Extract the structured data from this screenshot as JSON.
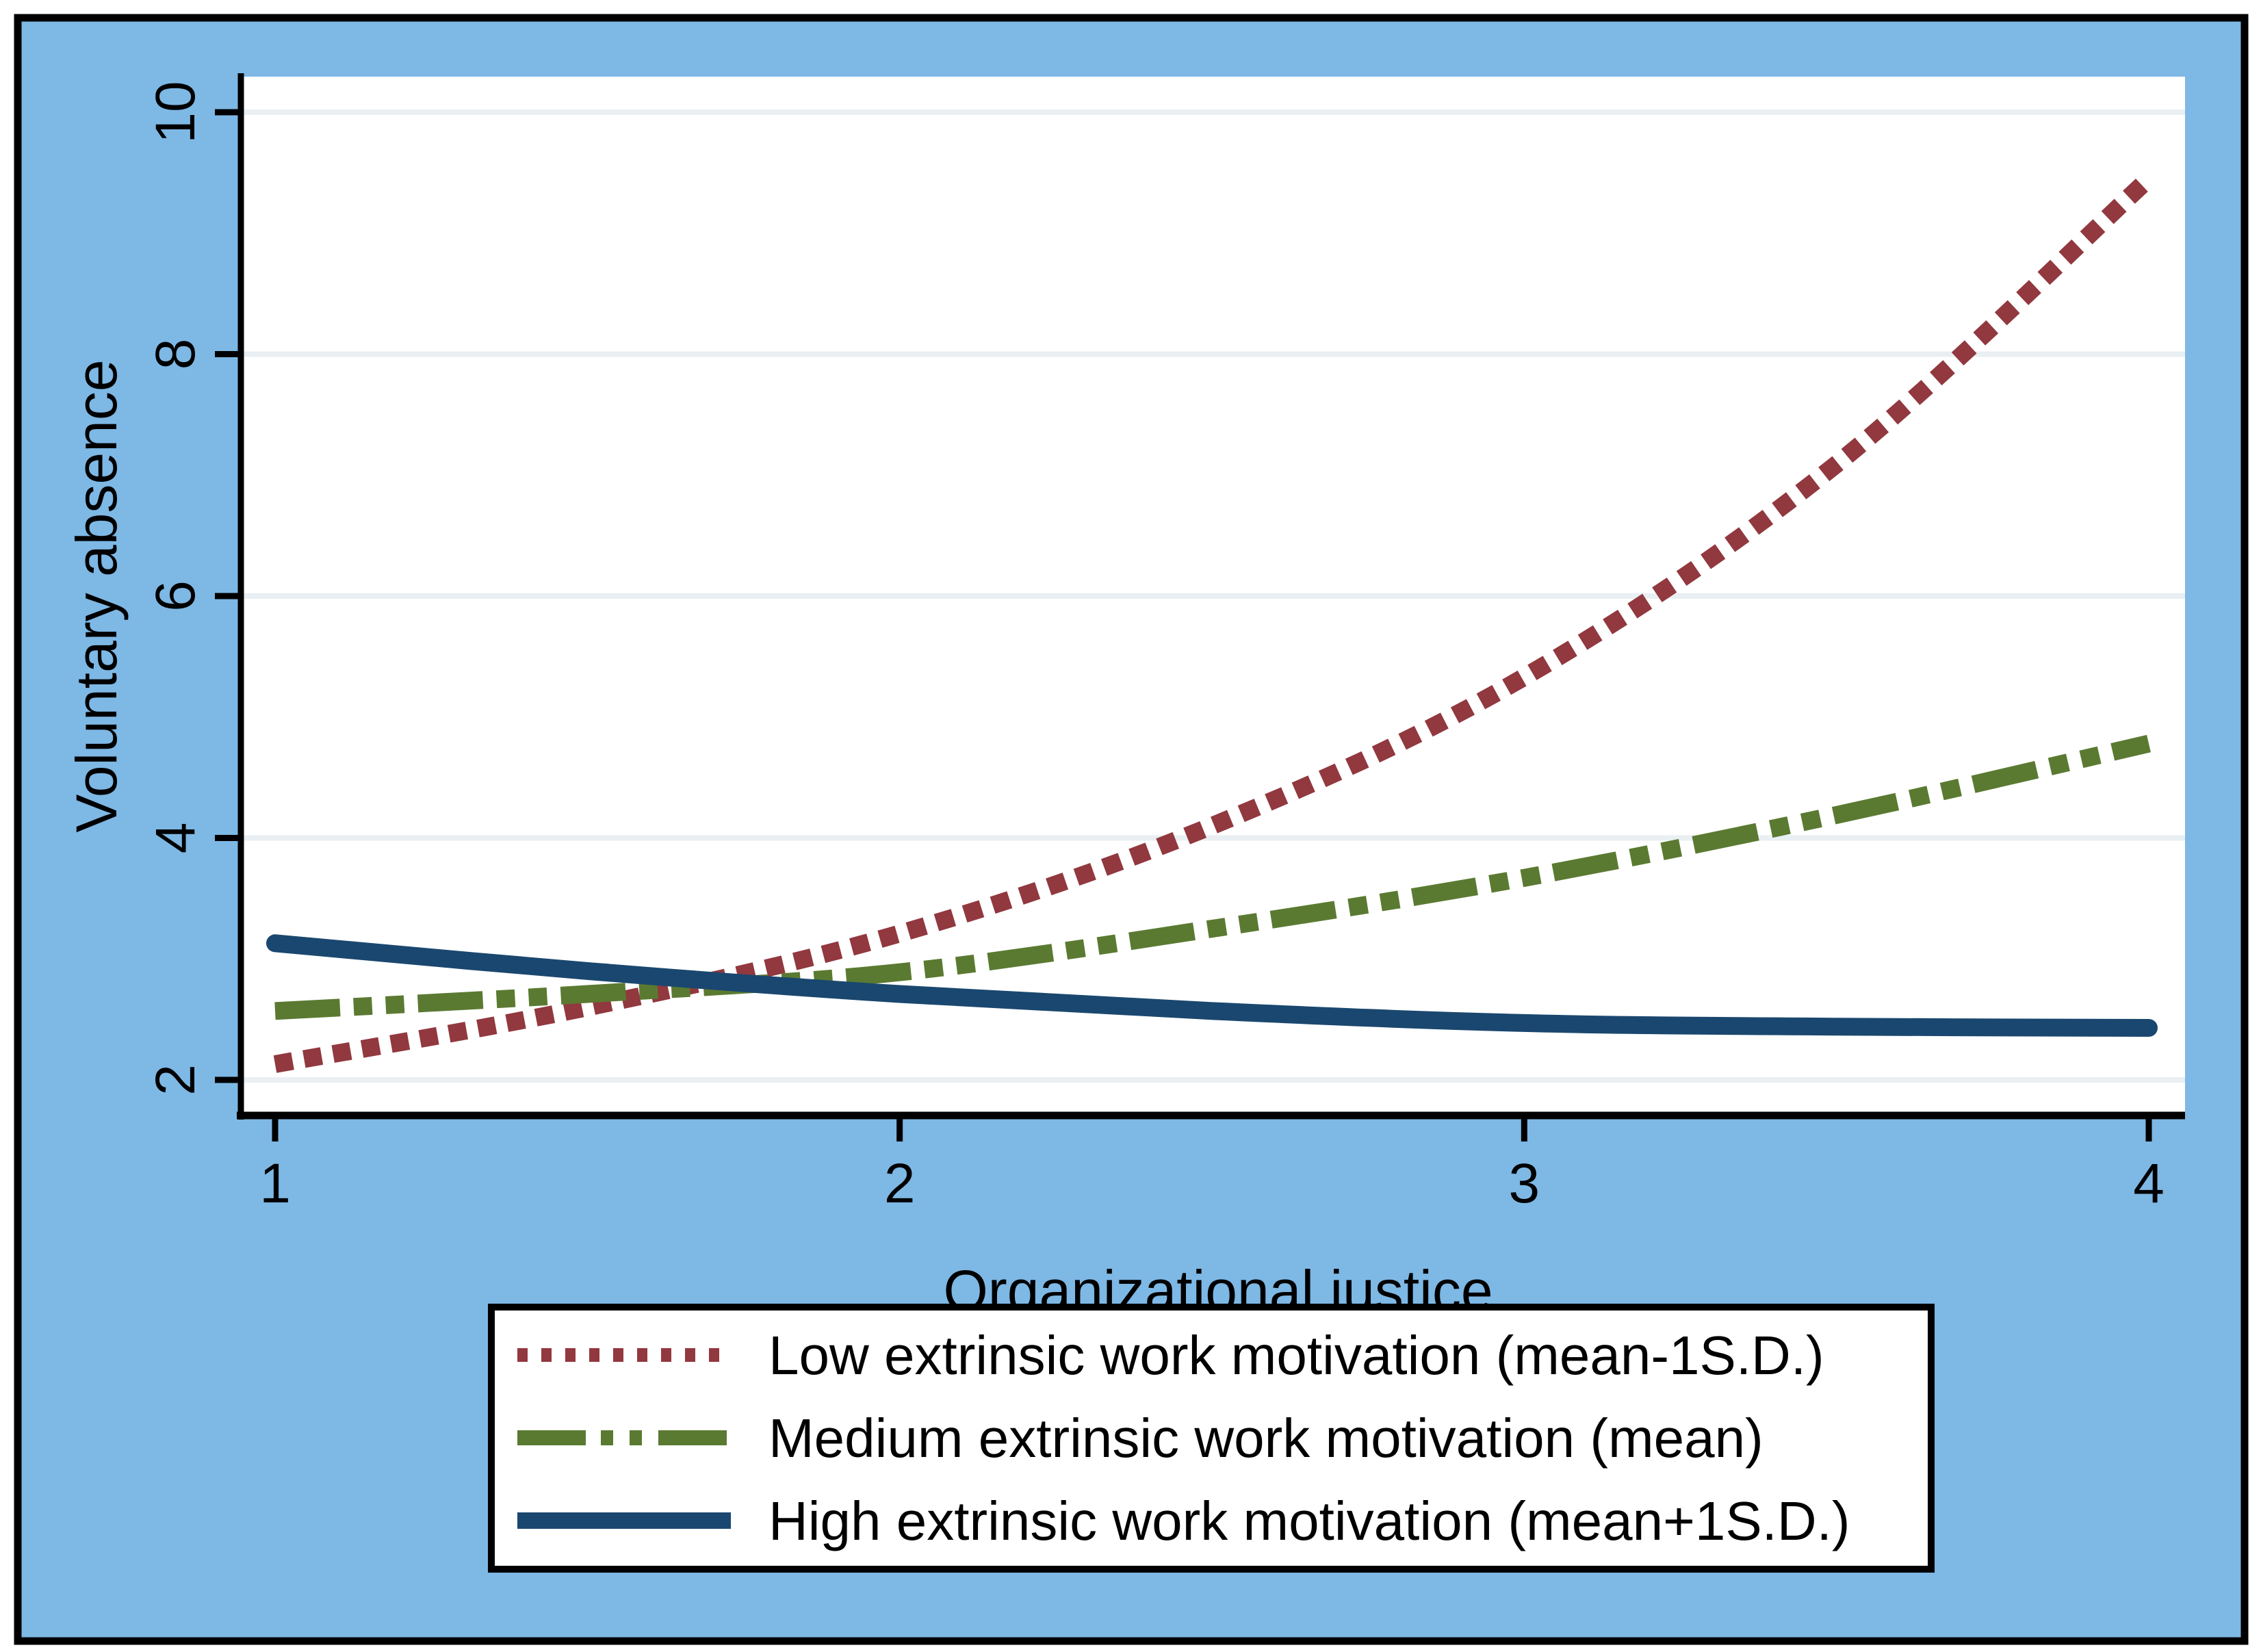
{
  "frame": {
    "background_color": "#7EB8E5",
    "border_color": "#000000",
    "plot_background": "#FFFFFF",
    "gridline_color": "#E9EFF3"
  },
  "chart_data": {
    "type": "line",
    "title": "",
    "xlabel": "Organizational justice",
    "ylabel": "Voluntary absence",
    "x_ticks": [
      1,
      2,
      3,
      4
    ],
    "y_ticks": [
      2,
      4,
      6,
      8,
      10
    ],
    "xlim": [
      0.94,
      4.06
    ],
    "ylim": [
      1.71,
      10.29
    ],
    "grid": "horizontal",
    "legend_position": "below-plot",
    "series": [
      {
        "name": "Low extrinsic work motivation (mean-1S.D.)",
        "color": "#92383F",
        "style": "dotted",
        "x": [
          1,
          1.5,
          2,
          2.5,
          3,
          3.5,
          4
        ],
        "y": [
          2.13,
          2.6,
          3.21,
          4.1,
          5.33,
          7.09,
          9.45
        ]
      },
      {
        "name": "Medium extrinsic work motivation (mean)",
        "color": "#5A7A31",
        "style": "dash-dot-dot",
        "x": [
          1,
          1.5,
          2,
          2.5,
          3,
          3.5,
          4
        ],
        "y": [
          2.57,
          2.71,
          2.89,
          3.25,
          3.67,
          4.19,
          4.78
        ]
      },
      {
        "name": "High extrinsic work motivation (mean+1S.D.)",
        "color": "#1A476F",
        "style": "solid",
        "x": [
          1,
          1.5,
          2,
          2.5,
          3,
          3.5,
          4
        ],
        "y": [
          3.13,
          2.9,
          2.71,
          2.57,
          2.47,
          2.44,
          2.43
        ]
      }
    ]
  }
}
